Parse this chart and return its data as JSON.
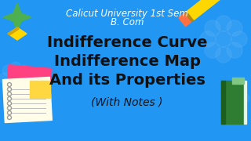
{
  "bg_color": "#2196F3",
  "subtitle_line1": "Calicut University 1st Sem",
  "subtitle_line2": "B. Com",
  "subtitle_color": "#FFFFFF",
  "subtitle_fontsize": 8.5,
  "line1": "Indifference Curve",
  "line2": "Indifference Map",
  "line3": "And its Properties",
  "main_color": "#111111",
  "main_fontsize": 14,
  "subnote": "(With Notes )",
  "subnote_color": "#111111",
  "subnote_fontsize": 10,
  "flower_color": "#64B5F6",
  "pencil_body": "#FFD700",
  "pencil_tip": "#C8A800",
  "pencil_dark": "#B8860B",
  "star_green": "#4CAF50",
  "star_yellow": "#FFD700",
  "notebook_cream": "#FFFDE7",
  "notebook_pink": "#FF4081",
  "notebook_yellow": "#FFD740",
  "notebook_green": "#2E7D32",
  "notebook_light_green": "#81C784",
  "spiral_color": "#9E9E9E",
  "line_color": "#BDBDBD"
}
